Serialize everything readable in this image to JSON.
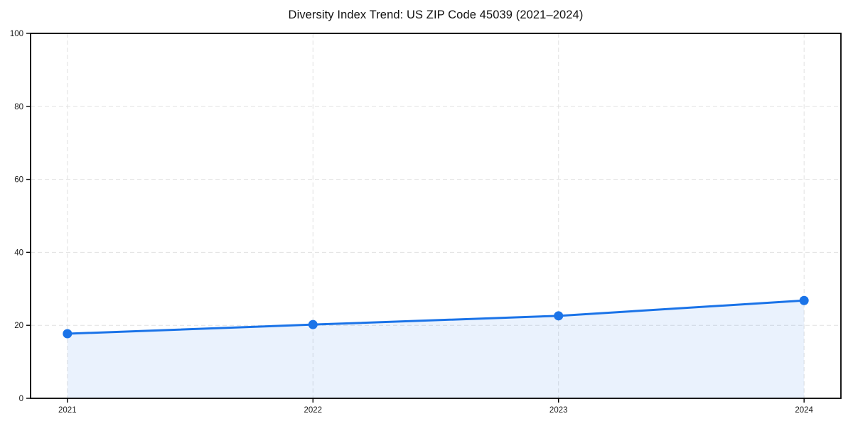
{
  "chart_data": {
    "type": "area",
    "title": "Diversity Index Trend: US ZIP Code 45039 (2021–2024)",
    "x": [
      2021,
      2022,
      2023,
      2024
    ],
    "x_tick_labels": [
      "2021",
      "2022",
      "2023",
      "2024"
    ],
    "series": [
      {
        "name": "Diversity Index",
        "values": [
          17.7,
          20.2,
          22.6,
          26.8
        ]
      }
    ],
    "xlabel": "",
    "ylabel": "",
    "ylim": [
      0,
      100
    ],
    "yticks": [
      0,
      20,
      40,
      60,
      80,
      100
    ],
    "ytick_labels": [
      "0",
      "20",
      "40",
      "60",
      "80",
      "100"
    ],
    "grid": true,
    "grid_line_style": "dashed",
    "legend_position": "none",
    "colors": {
      "line": "#1a73e8",
      "marker": "#1a73e8",
      "fill": "rgba(26,115,232,0.09)",
      "grid": "#e1e1e1",
      "spine": "#000000",
      "tick_text": "#1a1a1a",
      "background": "#ffffff"
    }
  }
}
